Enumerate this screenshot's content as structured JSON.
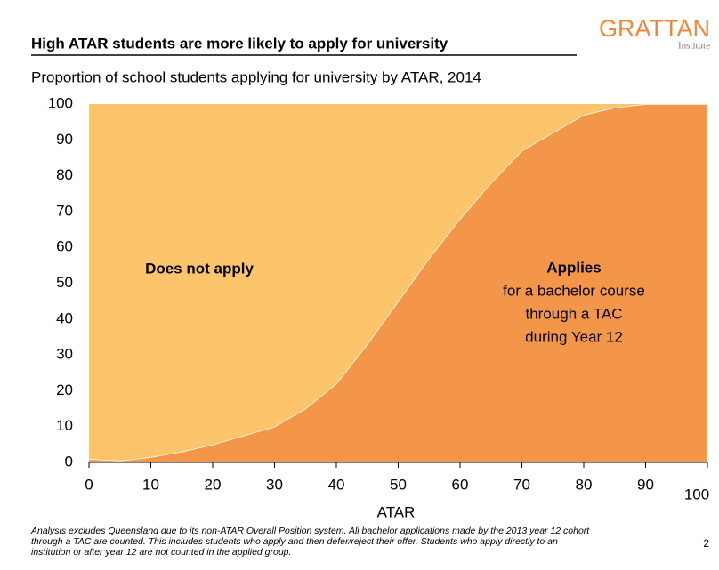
{
  "chart_data": {
    "type": "stacked_area",
    "title": "High ATAR students are more likely to apply for university",
    "subtitle": "Proportion of school students applying for university by ATAR, 2014",
    "x_label": "ATAR",
    "x": [
      0,
      5,
      10,
      15,
      20,
      25,
      30,
      35,
      40,
      45,
      50,
      55,
      60,
      65,
      70,
      75,
      80,
      85,
      90,
      95,
      100
    ],
    "series": [
      {
        "name": "Applies",
        "color": "#f4964a",
        "values": [
          1,
          0.5,
          1.5,
          3,
          5,
          7.5,
          10,
          15,
          22,
          33,
          45,
          57,
          68,
          78,
          87,
          92,
          97,
          99,
          100,
          100,
          100
        ]
      },
      {
        "name": "Does not apply",
        "color": "#fdc56b",
        "values": [
          99,
          99.5,
          98.5,
          97,
          95,
          92.5,
          90,
          85,
          78,
          67,
          55,
          43,
          32,
          22,
          13,
          8,
          3,
          1,
          0,
          0,
          0
        ]
      }
    ],
    "annotation_lines": [
      "for a bachelor course",
      "through a TAC",
      "during Year 12"
    ],
    "xlim": [
      0,
      100
    ],
    "xticks": [
      0,
      10,
      20,
      30,
      40,
      50,
      60,
      70,
      80,
      90,
      100
    ],
    "ylim": [
      0,
      100
    ],
    "yticks": [
      0,
      10,
      20,
      30,
      40,
      50,
      60,
      70,
      80,
      90,
      100
    ],
    "grid": false,
    "note": [
      "Analysis excludes Queensland due to its non-ATAR Overall Position system. All bachelor applications made by the 2013 year 12 cohort",
      "through a TAC are counted. This includes students who apply and then defer/reject their offer. Students who apply directly to an",
      "institution or after year 12 are not counted in the applied group."
    ],
    "page_number": "2",
    "logo": "GRATTAN",
    "logo_sub": "Institute"
  }
}
